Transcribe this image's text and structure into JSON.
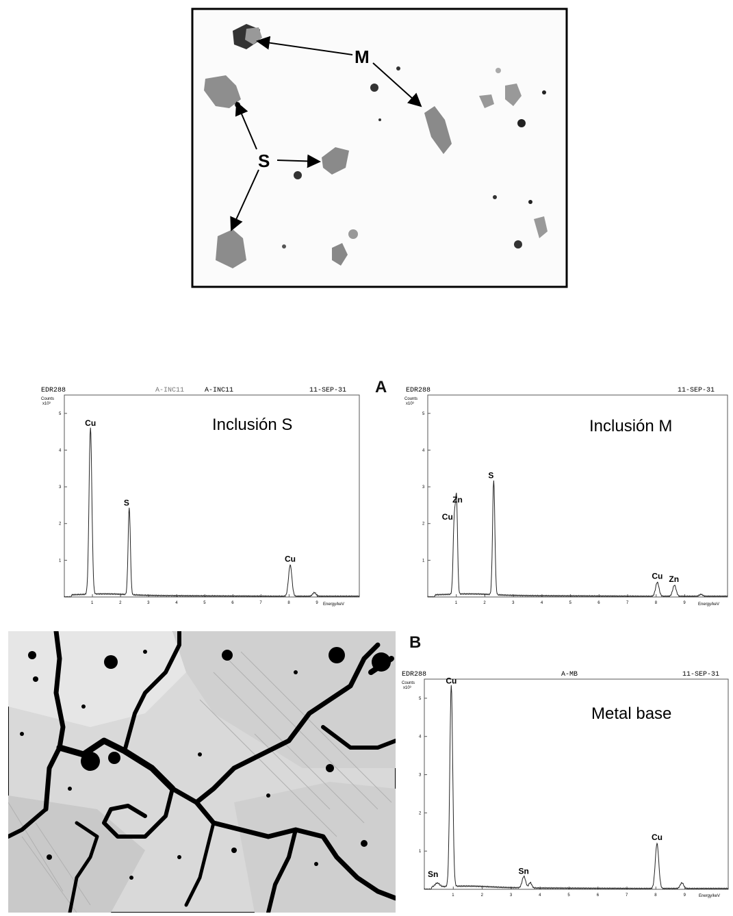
{
  "micrograph_top": {
    "arrow_labels": [
      "M",
      "S"
    ]
  },
  "panel_labels": {
    "a": "A",
    "b": "B"
  },
  "spectra_meta": {
    "s": {
      "header_left": "EDR288",
      "header_mid1": "A-INC11",
      "header_mid2": "A-INC11",
      "header_right": "11-SEP-31"
    },
    "m": {
      "header_left": "EDR288",
      "header_right": "11-SEP-31"
    },
    "b": {
      "header_left": "EDR288",
      "header_mid": "A-MB",
      "header_right": "11-SEP-31"
    },
    "counts_label": "Counts",
    "counts_scale": "x10³",
    "x_axis_label": "Energy/keV"
  },
  "chart_data": [
    {
      "type": "line",
      "title": "Inclusión S",
      "xlabel": "Energy/keV",
      "ylabel": "Counts x10³",
      "xlim": [
        0,
        10.5
      ],
      "ylim": [
        0,
        5.5
      ],
      "x_ticks": [
        "1",
        "2",
        "3",
        "4",
        "5",
        "6",
        "7",
        "8",
        "9"
      ],
      "y_ticks": [
        "1",
        "2",
        "3",
        "4",
        "5"
      ],
      "peaks": [
        {
          "label": "Cu",
          "x": 0.93,
          "y": 4.55,
          "w": 0.05
        },
        {
          "label": "S",
          "x": 2.31,
          "y": 2.38,
          "w": 0.04
        },
        {
          "label": "Cu",
          "x": 8.04,
          "y": 0.85,
          "w": 0.06
        },
        {
          "label": "",
          "x": 8.9,
          "y": 0.1,
          "w": 0.06
        }
      ]
    },
    {
      "type": "line",
      "title": "Inclusión M",
      "xlabel": "Energy/keV",
      "ylabel": "Counts x10³",
      "xlim": [
        0,
        10.5
      ],
      "ylim": [
        0,
        5.5
      ],
      "x_ticks": [
        "1",
        "2",
        "3",
        "4",
        "5",
        "6",
        "7",
        "8",
        "9"
      ],
      "y_ticks": [
        "1",
        "2",
        "3",
        "4",
        "5"
      ],
      "peaks": [
        {
          "label": "Cu",
          "x": 0.93,
          "y": 2.05,
          "w": 0.04
        },
        {
          "label": "Zn",
          "x": 1.01,
          "y": 2.42,
          "w": 0.035
        },
        {
          "label": "S",
          "x": 2.31,
          "y": 3.12,
          "w": 0.04
        },
        {
          "label": "Cu",
          "x": 8.04,
          "y": 0.38,
          "w": 0.06
        },
        {
          "label": "Zn",
          "x": 8.64,
          "y": 0.3,
          "w": 0.06
        },
        {
          "label": "",
          "x": 9.57,
          "y": 0.05,
          "w": 0.06
        }
      ]
    },
    {
      "type": "line",
      "title": "Metal base",
      "xlabel": "Energy/keV",
      "ylabel": "Counts x10³",
      "xlim": [
        0,
        10.5
      ],
      "ylim": [
        0,
        5.5
      ],
      "x_ticks": [
        "1",
        "2",
        "3",
        "4",
        "5",
        "6",
        "7",
        "8",
        "9"
      ],
      "y_ticks": [
        "1",
        "2",
        "3",
        "4",
        "5"
      ],
      "peaks": [
        {
          "label": "Cu",
          "x": 0.93,
          "y": 5.28,
          "w": 0.05
        },
        {
          "label": "Sn",
          "x": 0.45,
          "y": 0.1,
          "w": 0.08
        },
        {
          "label": "Sn",
          "x": 3.44,
          "y": 0.3,
          "w": 0.06
        },
        {
          "label": "",
          "x": 3.66,
          "y": 0.14,
          "w": 0.05
        },
        {
          "label": "Cu",
          "x": 8.04,
          "y": 1.18,
          "w": 0.06
        },
        {
          "label": "",
          "x": 8.9,
          "y": 0.15,
          "w": 0.06
        }
      ]
    }
  ]
}
